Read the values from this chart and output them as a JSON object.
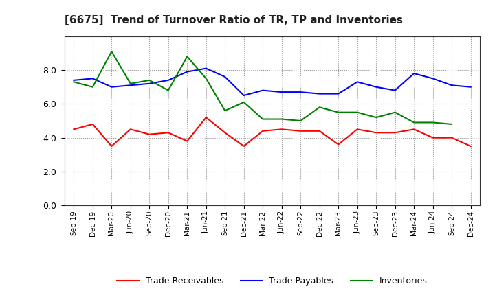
{
  "title": "[6675]  Trend of Turnover Ratio of TR, TP and Inventories",
  "x_labels": [
    "Sep-19",
    "Dec-19",
    "Mar-20",
    "Jun-20",
    "Sep-20",
    "Dec-20",
    "Mar-21",
    "Jun-21",
    "Sep-21",
    "Dec-21",
    "Mar-22",
    "Jun-22",
    "Sep-22",
    "Dec-22",
    "Mar-23",
    "Jun-23",
    "Sep-23",
    "Dec-23",
    "Mar-24",
    "Jun-24",
    "Sep-24",
    "Dec-24"
  ],
  "trade_receivables": [
    4.5,
    4.8,
    3.5,
    4.5,
    4.2,
    4.3,
    3.8,
    5.2,
    4.3,
    3.5,
    4.4,
    4.5,
    4.4,
    4.4,
    3.6,
    4.5,
    4.3,
    4.3,
    4.5,
    4.0,
    4.0,
    3.5
  ],
  "trade_payables": [
    7.4,
    7.5,
    7.0,
    7.1,
    7.2,
    7.4,
    7.9,
    8.1,
    7.6,
    6.5,
    6.8,
    6.7,
    6.7,
    6.6,
    6.6,
    7.3,
    7.0,
    6.8,
    7.8,
    7.5,
    7.1,
    7.0
  ],
  "inventories": [
    7.3,
    7.0,
    9.1,
    7.2,
    7.4,
    6.8,
    8.8,
    7.5,
    5.6,
    6.1,
    5.1,
    5.1,
    5.0,
    5.8,
    5.5,
    5.5,
    5.2,
    5.5,
    4.9,
    4.9,
    4.8,
    null
  ],
  "tr_color": "#ff0000",
  "tp_color": "#0000ff",
  "inv_color": "#008000",
  "ylim": [
    0,
    10
  ],
  "yticks": [
    0.0,
    2.0,
    4.0,
    6.0,
    8.0
  ],
  "background_color": "#ffffff",
  "grid_color": "#aaaaaa",
  "legend_labels": [
    "Trade Receivables",
    "Trade Payables",
    "Inventories"
  ]
}
